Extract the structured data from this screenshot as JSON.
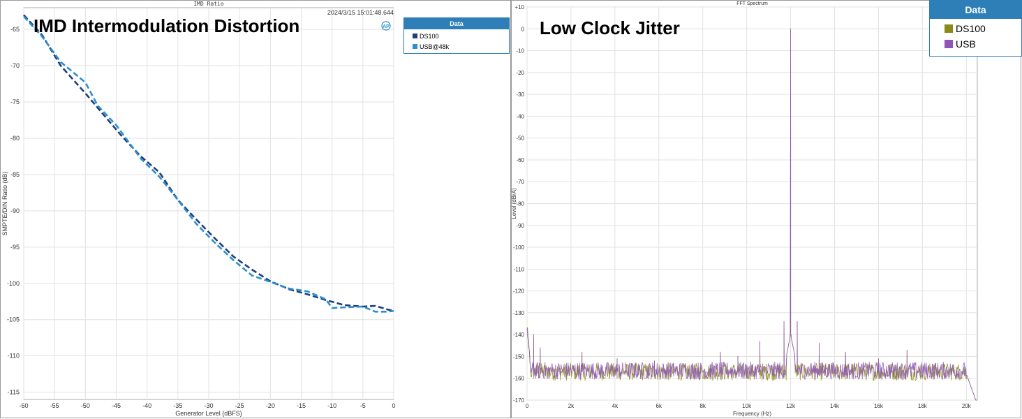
{
  "chart_data": [
    {
      "type": "line",
      "window_title": "IMD Ratio",
      "timestamp": "2024/3/15 15:01:48.644",
      "overlay_title": "IMD Intermodulation Distortion",
      "xlabel": "Generator Level (dBFS)",
      "ylabel": "SMPTE/DIN Ratio (dB)",
      "xlim": [
        -60,
        0
      ],
      "ylim": [
        -116,
        -62
      ],
      "xticks": [
        -60,
        -55,
        -50,
        -45,
        -40,
        -35,
        -30,
        -25,
        -20,
        -15,
        -10,
        -5,
        0
      ],
      "yticks": [
        -65,
        -70,
        -75,
        -80,
        -85,
        -90,
        -95,
        -100,
        -105,
        -110,
        -115
      ],
      "grid": true,
      "legend": {
        "title": "Data",
        "position": "right"
      },
      "series": [
        {
          "name": "DS100",
          "color": "#1f3f7a",
          "dash": true,
          "x": [
            -60,
            -57,
            -54,
            -50,
            -47,
            -44,
            -41,
            -38,
            -35,
            -32,
            -29,
            -26,
            -23,
            -20,
            -17,
            -14,
            -11,
            -8,
            -5,
            -3,
            -1,
            0
          ],
          "y": [
            -63,
            -65.8,
            -70,
            -73.8,
            -76.8,
            -79.8,
            -82.5,
            -84.7,
            -88.5,
            -91.2,
            -93.8,
            -96.3,
            -98.1,
            -99.7,
            -100.8,
            -101.5,
            -102.3,
            -103,
            -103.2,
            -103.1,
            -103.6,
            -103.8
          ]
        },
        {
          "name": "USB@48k",
          "color": "#2b8fd0",
          "dash": true,
          "x": [
            -60,
            -57,
            -54,
            -50,
            -48,
            -45,
            -41,
            -38,
            -35,
            -32,
            -29,
            -26,
            -23,
            -20,
            -17,
            -14,
            -11,
            -10,
            -8,
            -5,
            -3,
            -1,
            0
          ],
          "y": [
            -63.2,
            -66,
            -69.5,
            -72.3,
            -75.5,
            -78.2,
            -82.8,
            -85.3,
            -88.5,
            -91.8,
            -94.4,
            -96.8,
            -98.9,
            -99.8,
            -100.7,
            -101.1,
            -102.2,
            -103.4,
            -103.3,
            -103.2,
            -103.9,
            -103.9,
            -103.8
          ]
        }
      ]
    },
    {
      "type": "line",
      "window_title": "FFT Spectrum",
      "overlay_title": "Low Clock Jitter",
      "xlabel": "Frequency (Hz)",
      "ylabel": "Level (dBrA)",
      "xlim": [
        0,
        20500
      ],
      "ylim": [
        -170,
        10
      ],
      "xticks": [
        "0",
        "2k",
        "4k",
        "6k",
        "8k",
        "10k",
        "12k",
        "14k",
        "16k",
        "18k",
        "20k"
      ],
      "yticks": [
        "+10",
        "0",
        "-10",
        "-20",
        "-30",
        "-40",
        "-50",
        "-60",
        "-70",
        "-80",
        "-90",
        "-100",
        "-110",
        "-120",
        "-130",
        "-140",
        "-150",
        "-160",
        "-170"
      ],
      "grid": true,
      "legend": {
        "title": "Data",
        "position": "top-right"
      },
      "noise_floor_db": -157,
      "fundamental_hz": 12000,
      "fundamental_db": 0,
      "spurs": [
        {
          "hz": 300,
          "db": -140
        },
        {
          "hz": 600,
          "db": -146
        },
        {
          "hz": 2500,
          "db": -148
        },
        {
          "hz": 4100,
          "db": -151
        },
        {
          "hz": 5800,
          "db": -152
        },
        {
          "hz": 8800,
          "db": -148
        },
        {
          "hz": 9600,
          "db": -150
        },
        {
          "hz": 10600,
          "db": -143
        },
        {
          "hz": 11700,
          "db": -134
        },
        {
          "hz": 12300,
          "db": -134
        },
        {
          "hz": 13300,
          "db": -144
        },
        {
          "hz": 14500,
          "db": -148
        },
        {
          "hz": 16000,
          "db": -151
        },
        {
          "hz": 17300,
          "db": -147
        }
      ],
      "series": [
        {
          "name": "DS100",
          "color": "#8a8a1a"
        },
        {
          "name": "USB",
          "color": "#8e55b8"
        }
      ]
    }
  ]
}
